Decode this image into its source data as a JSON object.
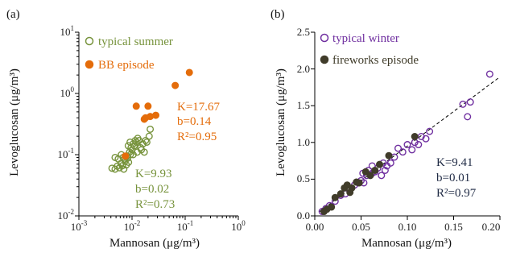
{
  "chart_data": [
    {
      "panel_label": "(a)",
      "type": "scatter",
      "xscale": "log",
      "yscale": "log",
      "xlim": [
        0.001,
        1
      ],
      "ylim": [
        0.01,
        10
      ],
      "x_ticks": [
        "10",
        "10",
        "10",
        "10"
      ],
      "x_tick_exps": [
        "-3",
        "-2",
        "-1",
        "0"
      ],
      "y_ticks": [
        "10",
        "10",
        "10",
        "10"
      ],
      "y_tick_exps": [
        "-2",
        "-1",
        "0",
        "1"
      ],
      "xlabel": "Mannosan (μg/m³)",
      "ylabel": "Levoglucosan (μg/m³)",
      "legend_position": "top-left",
      "series": [
        {
          "name": "typical summer",
          "marker": "open-circle",
          "color": "#77933C",
          "points": [
            [
              0.0042,
              0.06
            ],
            [
              0.0048,
              0.058
            ],
            [
              0.0053,
              0.065
            ],
            [
              0.0058,
              0.061
            ],
            [
              0.0062,
              0.072
            ],
            [
              0.0066,
              0.066
            ],
            [
              0.007,
              0.058
            ],
            [
              0.0072,
              0.085
            ],
            [
              0.0074,
              0.078
            ],
            [
              0.0078,
              0.068
            ],
            [
              0.008,
              0.095
            ],
            [
              0.0083,
              0.088
            ],
            [
              0.0086,
              0.075
            ],
            [
              0.009,
              0.11
            ],
            [
              0.0093,
              0.1
            ],
            [
              0.0096,
              0.13
            ],
            [
              0.01,
              0.12
            ],
            [
              0.0105,
              0.15
            ],
            [
              0.011,
              0.14
            ],
            [
              0.0115,
              0.17
            ],
            [
              0.012,
              0.16
            ],
            [
              0.0128,
              0.185
            ],
            [
              0.0135,
              0.17
            ],
            [
              0.0145,
              0.13
            ],
            [
              0.015,
              0.12
            ],
            [
              0.016,
              0.15
            ],
            [
              0.017,
              0.11
            ],
            [
              0.018,
              0.17
            ],
            [
              0.019,
              0.16
            ],
            [
              0.021,
              0.2
            ],
            [
              0.022,
              0.26
            ],
            [
              0.0048,
              0.09
            ],
            [
              0.0055,
              0.085
            ],
            [
              0.0063,
              0.1
            ],
            [
              0.0085,
              0.14
            ],
            [
              0.0092,
              0.16
            ],
            [
              0.0105,
              0.1
            ],
            [
              0.0125,
              0.11
            ],
            [
              0.0068,
              0.09
            ]
          ]
        },
        {
          "name": "BB episode",
          "marker": "filled-circle",
          "color": "#E46C0A",
          "points": [
            [
              0.0075,
              0.095
            ],
            [
              0.012,
              0.62
            ],
            [
              0.017,
              0.38
            ],
            [
              0.018,
              0.4
            ],
            [
              0.02,
              0.62
            ],
            [
              0.022,
              0.42
            ],
            [
              0.028,
              0.44
            ],
            [
              0.065,
              1.35
            ],
            [
              0.12,
              2.2
            ]
          ]
        }
      ],
      "annotations": [
        {
          "series": "BB episode",
          "lines": [
            "K=17.67",
            "b=0.14",
            "R²=0.95"
          ],
          "color": "#E46C0A"
        },
        {
          "series": "typical summer",
          "lines": [
            "K=9.93",
            "b=0.02",
            "R²=0.73"
          ],
          "color": "#77933C"
        }
      ]
    },
    {
      "panel_label": "(b)",
      "type": "scatter",
      "xlim": [
        0,
        0.2
      ],
      "ylim": [
        0,
        2.5
      ],
      "x_ticks": [
        "0.00",
        "0.05",
        "0.10",
        "0.15",
        "0.20"
      ],
      "y_ticks": [
        "0.0",
        "0.5",
        "1.0",
        "1.5",
        "2.0",
        "2.5"
      ],
      "xlabel": "Mannosan (μg/m³)",
      "ylabel": "Levoglucosan (μg/m³)",
      "legend_position": "top-left",
      "series": [
        {
          "name": "typical winter",
          "marker": "open-circle",
          "color": "#7030A0",
          "points": [
            [
              0.008,
              0.06
            ],
            [
              0.012,
              0.1
            ],
            [
              0.016,
              0.14
            ],
            [
              0.022,
              0.2
            ],
            [
              0.028,
              0.28
            ],
            [
              0.033,
              0.3
            ],
            [
              0.038,
              0.35
            ],
            [
              0.043,
              0.42
            ],
            [
              0.047,
              0.45
            ],
            [
              0.05,
              0.48
            ],
            [
              0.053,
              0.45
            ],
            [
              0.056,
              0.55
            ],
            [
              0.058,
              0.62
            ],
            [
              0.062,
              0.68
            ],
            [
              0.065,
              0.6
            ],
            [
              0.068,
              0.65
            ],
            [
              0.072,
              0.55
            ],
            [
              0.074,
              0.72
            ],
            [
              0.078,
              0.68
            ],
            [
              0.082,
              0.72
            ],
            [
              0.086,
              0.8
            ],
            [
              0.09,
              0.92
            ],
            [
              0.095,
              0.87
            ],
            [
              0.1,
              0.97
            ],
            [
              0.105,
              0.9
            ],
            [
              0.108,
              1.0
            ],
            [
              0.112,
              0.97
            ],
            [
              0.115,
              1.08
            ],
            [
              0.12,
              1.05
            ],
            [
              0.124,
              1.15
            ],
            [
              0.16,
              1.52
            ],
            [
              0.165,
              1.35
            ],
            [
              0.168,
              1.55
            ],
            [
              0.189,
              1.93
            ],
            [
              0.062,
              0.58
            ],
            [
              0.052,
              0.58
            ],
            [
              0.076,
              0.62
            ]
          ]
        },
        {
          "name": "fireworks episode",
          "marker": "filled-circle",
          "color": "#403C2A",
          "points": [
            [
              0.01,
              0.06
            ],
            [
              0.013,
              0.09
            ],
            [
              0.018,
              0.12
            ],
            [
              0.022,
              0.25
            ],
            [
              0.028,
              0.3
            ],
            [
              0.032,
              0.38
            ],
            [
              0.035,
              0.42
            ],
            [
              0.038,
              0.32
            ],
            [
              0.04,
              0.38
            ],
            [
              0.045,
              0.46
            ],
            [
              0.048,
              0.45
            ],
            [
              0.055,
              0.6
            ],
            [
              0.06,
              0.55
            ],
            [
              0.065,
              0.62
            ],
            [
              0.07,
              0.7
            ],
            [
              0.08,
              0.82
            ],
            [
              0.108,
              1.08
            ]
          ]
        }
      ],
      "fit_line": {
        "k": 9.41,
        "b": 0.01,
        "style": "dashed"
      },
      "annotations": [
        {
          "lines": [
            "K=9.41",
            "b=0.01",
            "R²=0.97"
          ],
          "color": "#1F2A44"
        }
      ]
    }
  ]
}
